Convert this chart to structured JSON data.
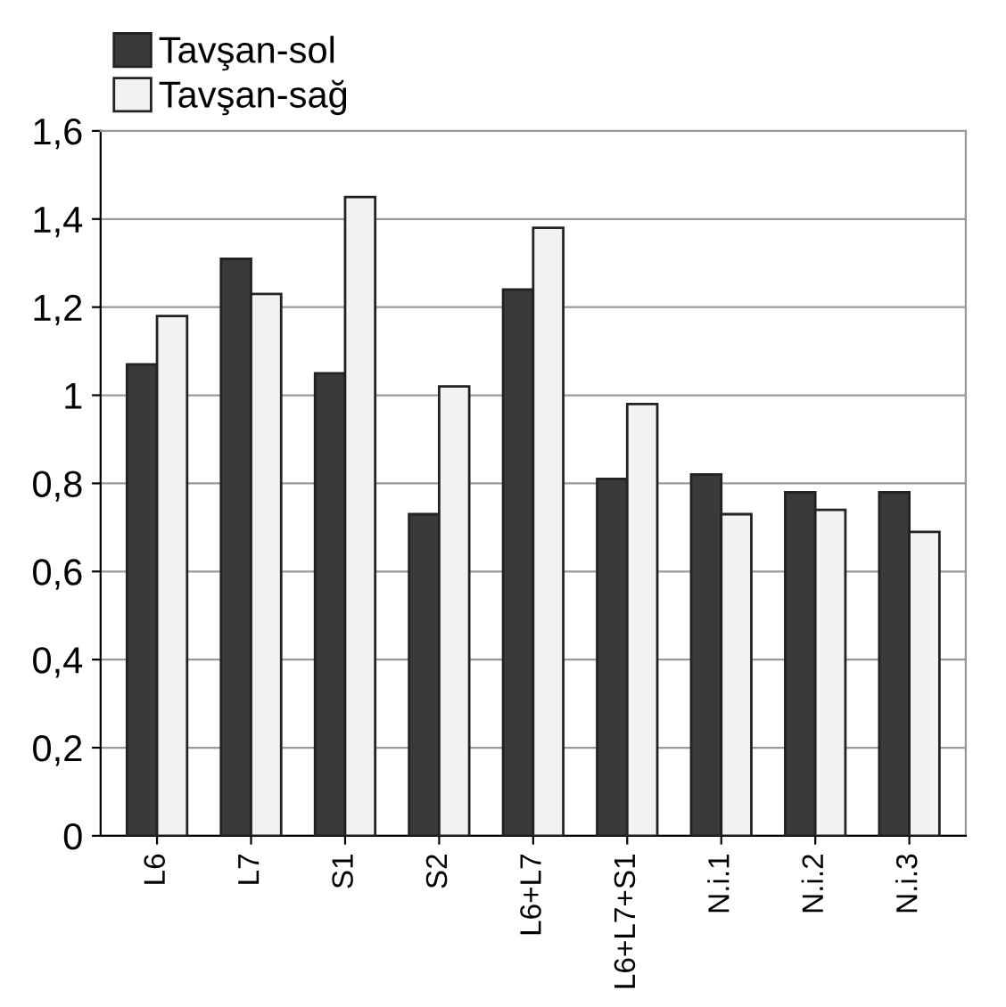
{
  "chart_data": {
    "type": "bar",
    "categories": [
      "L6",
      "L7",
      "S1",
      "S2",
      "L6+L7",
      "L6+L7+S1",
      "N.i.1",
      "N.i.2",
      "N.i.3"
    ],
    "series": [
      {
        "name": "Tavşan-sol",
        "color": "#3a3a3a",
        "values": [
          1.07,
          1.31,
          1.05,
          0.73,
          1.24,
          0.81,
          0.82,
          0.78,
          0.78
        ]
      },
      {
        "name": "Tavşan-sağ",
        "color": "#f2f2f2",
        "values": [
          1.18,
          1.23,
          1.45,
          1.02,
          1.38,
          0.98,
          0.73,
          0.74,
          0.69
        ]
      }
    ],
    "ylim": [
      0,
      1.6
    ],
    "yticks": [
      {
        "value": 0,
        "label": "0"
      },
      {
        "value": 0.2,
        "label": "0,2"
      },
      {
        "value": 0.4,
        "label": "0,4"
      },
      {
        "value": 0.6,
        "label": "0,6"
      },
      {
        "value": 0.8,
        "label": "0,8"
      },
      {
        "value": 1,
        "label": "1"
      },
      {
        "value": 1.2,
        "label": "1,2"
      },
      {
        "value": 1.4,
        "label": "1,4"
      },
      {
        "value": 1.6,
        "label": "1,6"
      }
    ],
    "grid": "y",
    "legend": "top left"
  }
}
